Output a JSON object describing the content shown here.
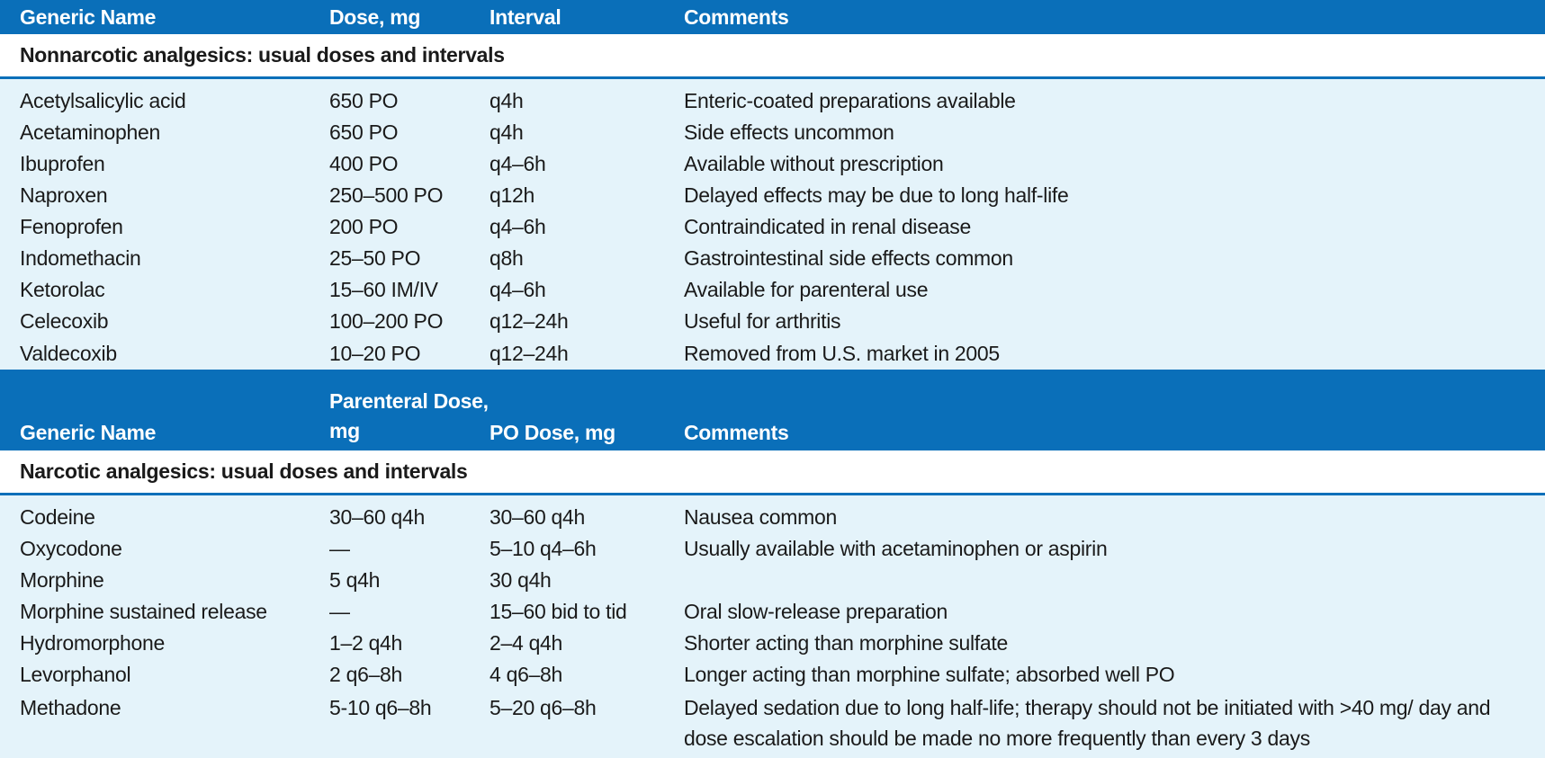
{
  "table1": {
    "headers": {
      "generic_name": "Generic Name",
      "dose": "Dose, mg",
      "interval": "Interval",
      "comments": "Comments"
    },
    "section_title": "Nonnarcotic analgesics: usual doses and intervals",
    "rows": [
      {
        "name": "Acetylsalicylic acid",
        "dose": "650 PO",
        "interval": "q4h",
        "comments": "Enteric-coated preparations available"
      },
      {
        "name": "Acetaminophen",
        "dose": "650 PO",
        "interval": "q4h",
        "comments": "Side effects uncommon"
      },
      {
        "name": "Ibuprofen",
        "dose": "400 PO",
        "interval": "q4–6h",
        "comments": "Available without prescription"
      },
      {
        "name": "Naproxen",
        "dose": "250–500 PO",
        "interval": "q12h",
        "comments": "Delayed effects may be due to long half-life"
      },
      {
        "name": "Fenoprofen",
        "dose": "200 PO",
        "interval": "q4–6h",
        "comments": "Contraindicated in renal disease"
      },
      {
        "name": "Indomethacin",
        "dose": "25–50 PO",
        "interval": "q8h",
        "comments": "Gastrointestinal side effects common"
      },
      {
        "name": "Ketorolac",
        "dose": "15–60 IM/IV",
        "interval": "q4–6h",
        "comments": "Available for parenteral use"
      },
      {
        "name": "Celecoxib",
        "dose": "100–200 PO",
        "interval": "q12–24h",
        "comments": "Useful for arthritis"
      },
      {
        "name": "Valdecoxib",
        "dose": "10–20 PO",
        "interval": "q12–24h",
        "comments": "Removed from U.S. market in 2005"
      }
    ]
  },
  "table2": {
    "headers": {
      "generic_name": "Generic Name",
      "parenteral_dose": "Parenteral Dose, mg",
      "po_dose": "PO Dose, mg",
      "comments": "Comments"
    },
    "section_title": "Narcotic analgesics: usual doses and intervals",
    "rows": [
      {
        "name": "Codeine",
        "parenteral": "30–60 q4h",
        "po": "30–60 q4h",
        "comments": "Nausea common"
      },
      {
        "name": "Oxycodone",
        "parenteral": "—",
        "po": "5–10 q4–6h",
        "comments": "Usually available with acetaminophen or aspirin"
      },
      {
        "name": "Morphine",
        "parenteral": "5 q4h",
        "po": "30 q4h",
        "comments": ""
      },
      {
        "name": "Morphine sustained release",
        "parenteral": "—",
        "po": "15–60 bid to tid",
        "comments": "Oral slow-release preparation"
      },
      {
        "name": "Hydromorphone",
        "parenteral": "1–2 q4h",
        "po": "2–4 q4h",
        "comments": "Shorter acting than morphine sulfate"
      },
      {
        "name": "Levorphanol",
        "parenteral": "2 q6–8h",
        "po": "4 q6–8h",
        "comments": "Longer acting than morphine sulfate; absorbed well PO"
      },
      {
        "name": "Methadone",
        "parenteral": "5-10 q6–8h",
        "po": "5–20 q6–8h",
        "comments": "Delayed sedation due to long half-life; therapy should not be initiated with >40 mg/ day and dose escalation should be made no more frequently than every 3 days"
      }
    ]
  },
  "colors": {
    "header_bg": "#0a6fb9",
    "body_bg": "#e4f3fa",
    "header_text": "#ffffff"
  }
}
